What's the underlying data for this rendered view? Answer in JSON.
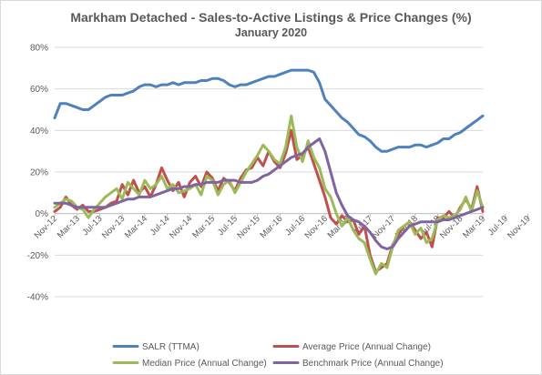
{
  "chart_data": {
    "type": "line",
    "title": "Markham Detached - Sales-to-Active Listings & Price Changes (%)",
    "subtitle": "January 2020",
    "ylim": [
      -40,
      80
    ],
    "y_tick_step": 20,
    "y_tick_labels": [
      "-40%",
      "-20%",
      "0%",
      "20%",
      "40%",
      "60%",
      "80%"
    ],
    "x_tick_labels": [
      "Nov-12",
      "Mar-13",
      "Jul-13",
      "Nov-13",
      "Mar-14",
      "Jul-14",
      "Nov-14",
      "Mar-15",
      "Jul-15",
      "Nov-15",
      "Mar-16",
      "Jul-16",
      "Nov-16",
      "Mar-17",
      "Jul-17",
      "Nov-17",
      "Mar-18",
      "Jul-18",
      "Nov-18",
      "Mar-19",
      "Jul-19",
      "Nov-19"
    ],
    "x_label_every": 4,
    "x_start": "Nov-12",
    "x_end": "Jan-20",
    "grid": "horizontal",
    "legend_position": "bottom",
    "series": [
      {
        "name": "SALR (TTMA)",
        "color": "#4f81bd",
        "values": [
          46,
          53,
          53,
          52,
          51,
          50,
          50,
          52,
          54,
          56,
          57,
          57,
          57,
          58,
          59,
          61,
          62,
          62,
          61,
          62,
          62,
          63,
          62,
          63,
          63,
          63,
          64,
          64,
          65,
          65,
          64,
          62,
          61,
          62,
          62,
          63,
          64,
          65,
          66,
          66,
          67,
          68,
          69,
          69,
          69,
          69,
          68,
          63,
          55,
          52,
          49,
          46,
          44,
          41,
          38,
          37,
          35,
          32,
          30,
          30,
          31,
          32,
          32,
          32,
          33,
          33,
          32,
          33,
          34,
          36,
          36,
          38,
          39,
          41,
          43,
          45,
          47
        ]
      },
      {
        "name": "Average Price (Annual Change)",
        "color": "#c0504d",
        "values": [
          1,
          3,
          8,
          4,
          2,
          4,
          1,
          1,
          2,
          3,
          5,
          6,
          14,
          9,
          16,
          10,
          13,
          8,
          14,
          22,
          16,
          11,
          15,
          8,
          15,
          18,
          13,
          20,
          17,
          11,
          17,
          15,
          11,
          17,
          21,
          22,
          27,
          23,
          30,
          25,
          22,
          29,
          40,
          26,
          28,
          32,
          24,
          16,
          8,
          -2,
          -5,
          -1,
          -4,
          -3,
          -10,
          -6,
          -20,
          -28,
          -26,
          -24,
          -15,
          -10,
          -6,
          -4,
          -8,
          -12,
          -9,
          -16,
          -2,
          -2,
          1,
          -2,
          3,
          7,
          2,
          13,
          1
        ]
      },
      {
        "name": "Median Price (Annual Change)",
        "color": "#9bbb59",
        "values": [
          3,
          5,
          7,
          6,
          3,
          2,
          -2,
          2,
          5,
          8,
          10,
          12,
          7,
          15,
          12,
          9,
          16,
          12,
          14,
          18,
          12,
          14,
          10,
          11,
          12,
          14,
          9,
          18,
          16,
          9,
          14,
          16,
          10,
          15,
          20,
          24,
          28,
          33,
          30,
          26,
          24,
          32,
          47,
          32,
          25,
          35,
          27,
          22,
          12,
          8,
          0,
          -6,
          -2,
          -8,
          -12,
          -14,
          -22,
          -29,
          -24,
          -26,
          -16,
          -8,
          -6,
          -4,
          -10,
          -7,
          -14,
          -12,
          -3,
          -1,
          -2,
          -1,
          2,
          8,
          1,
          11,
          3
        ]
      },
      {
        "name": "Benchmark Price (Annual Change)",
        "color": "#8064a2",
        "values": [
          5,
          5,
          5,
          4,
          3,
          3,
          3,
          3,
          3,
          3,
          4,
          5,
          6,
          7,
          7,
          8,
          8,
          8,
          9,
          10,
          11,
          12,
          12,
          13,
          13,
          14,
          14,
          15,
          15,
          15,
          16,
          16,
          16,
          15,
          15,
          15,
          16,
          18,
          19,
          21,
          23,
          25,
          27,
          28,
          29,
          32,
          34,
          36,
          30,
          20,
          10,
          4,
          -1,
          -3,
          -4,
          -6,
          -9,
          -13,
          -16,
          -17,
          -16,
          -12,
          -9,
          -6,
          -5,
          -4,
          -4,
          -4,
          -4,
          -3,
          -3,
          -2,
          -1,
          0,
          1,
          2,
          3
        ]
      }
    ]
  }
}
